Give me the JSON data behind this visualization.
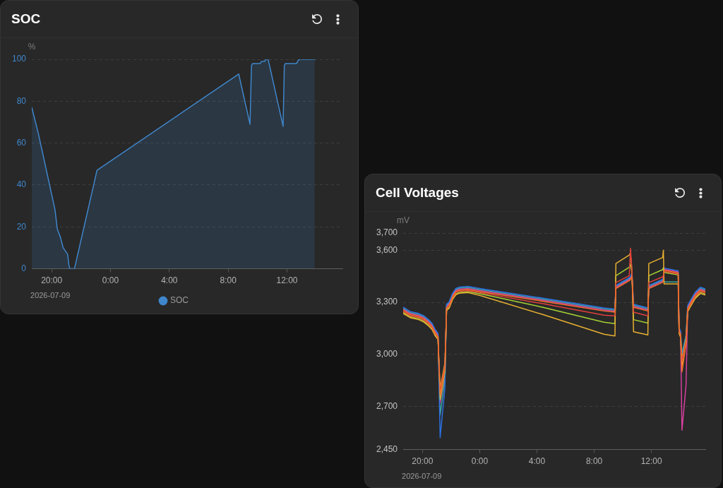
{
  "chart_data": [
    {
      "type": "area",
      "title": "SOC",
      "ylabel": "%",
      "x": [
        "2026-07-09T18:39",
        "2026-07-09T19:05",
        "2026-07-09T20:14",
        "2026-07-09T20:23",
        "2026-07-09T20:36",
        "2026-07-09T20:47",
        "2026-07-09T20:59",
        "2026-07-09T21:05",
        "2026-07-09T21:10",
        "2026-07-09T21:14",
        "2026-07-09T21:33",
        "2026-07-09T23:05",
        "2026-07-10T08:43",
        "2026-07-10T09:29",
        "2026-07-10T09:35",
        "2026-07-10T09:40",
        "2026-07-10T10:11",
        "2026-07-10T10:16",
        "2026-07-10T10:29",
        "2026-07-10T10:34",
        "2026-07-10T10:43",
        "2026-07-10T11:44",
        "2026-07-10T11:49",
        "2026-07-10T11:53",
        "2026-07-10T12:39",
        "2026-07-10T12:43",
        "2026-07-10T12:50",
        "2026-07-10T13:53"
      ],
      "series": [
        {
          "name": "SOC",
          "color": "#3f86cc",
          "values": [
            77,
            65,
            28,
            19,
            15,
            10,
            8,
            7,
            2,
            0,
            0,
            47,
            93,
            69,
            97,
            98,
            98,
            99,
            99,
            100,
            100,
            68,
            97,
            98,
            98,
            99,
            100,
            100
          ]
        }
      ],
      "xlim": [
        "2026-07-09T18:39",
        "2026-07-10T15:46"
      ],
      "xticks": [
        {
          "value": "2026-07-09T20:00",
          "label": "20:00"
        },
        {
          "value": "2026-07-10T00:00",
          "label": "0:00"
        },
        {
          "value": "2026-07-10T04:00",
          "label": "4:00"
        },
        {
          "value": "2026-07-10T08:00",
          "label": "8:00"
        },
        {
          "value": "2026-07-10T12:00",
          "label": "12:00"
        }
      ],
      "ylim": [
        0,
        100
      ],
      "yticks": [
        0,
        20,
        40,
        60,
        80,
        100
      ],
      "grid": "y",
      "legend": "bottom",
      "annotations": [
        "2026-07-09"
      ]
    },
    {
      "type": "line",
      "title": "Cell Voltages",
      "ylabel": "mV",
      "x": [
        "2026-07-09T18:39",
        "2026-07-09T19:09",
        "2026-07-09T19:44",
        "2026-07-09T20:06",
        "2026-07-09T20:27",
        "2026-07-09T20:41",
        "2026-07-09T20:52",
        "2026-07-09T21:05",
        "2026-07-09T21:14",
        "2026-07-09T21:34",
        "2026-07-09T21:41",
        "2026-07-09T21:52",
        "2026-07-09T22:06",
        "2026-07-09T22:20",
        "2026-07-09T22:35",
        "2026-07-09T23:10",
        "2026-07-10T00:00",
        "2026-07-10T04:26",
        "2026-07-10T08:41",
        "2026-07-10T09:27",
        "2026-07-10T09:31",
        "2026-07-10T10:27",
        "2026-07-10T10:32",
        "2026-07-10T10:38",
        "2026-07-10T10:45",
        "2026-07-10T11:45",
        "2026-07-10T11:49",
        "2026-07-10T12:47",
        "2026-07-10T12:50",
        "2026-07-10T12:53",
        "2026-07-10T13:49",
        "2026-07-10T13:52",
        "2026-07-10T13:56",
        "2026-07-10T14:02",
        "2026-07-10T14:08",
        "2026-07-10T14:25",
        "2026-07-10T14:32",
        "2026-07-10T14:43",
        "2026-07-10T15:04",
        "2026-07-10T15:25",
        "2026-07-10T15:46"
      ],
      "series": [
        {
          "color": "#f0702a",
          "values": [
            3254,
            3229,
            3218,
            3204,
            3180,
            3159,
            3128,
            3103,
            2760,
            2915,
            3271,
            3285,
            3334,
            3362,
            3370,
            3374,
            3362,
            3306,
            3250,
            3243,
            3380,
            3425,
            3432,
            3450,
            3271,
            3250,
            3380,
            3415,
            3425,
            3485,
            3471,
            3471,
            3137,
            3116,
            2899,
            3060,
            3264,
            3292,
            3341,
            3369,
            3360
          ]
        },
        {
          "color": "#e0403c",
          "values": [
            3248,
            3223,
            3212,
            3198,
            3174,
            3153,
            3122,
            3097,
            2780,
            2935,
            3265,
            3279,
            3328,
            3356,
            3364,
            3368,
            3356,
            3292,
            3226,
            3222,
            3414,
            3454,
            3612,
            3494,
            3243,
            3222,
            3414,
            3447,
            3455,
            3479,
            3465,
            3465,
            3131,
            3110,
            2960,
            3080,
            3258,
            3286,
            3335,
            3363,
            3354
          ]
        },
        {
          "color": "#e8b030",
          "values": [
            3236,
            3211,
            3200,
            3186,
            3162,
            3141,
            3110,
            3085,
            2800,
            2950,
            3253,
            3267,
            3316,
            3344,
            3352,
            3356,
            3340,
            3229,
            3116,
            3106,
            3524,
            3573,
            3585,
            3484,
            3130,
            3112,
            3524,
            3559,
            3601,
            3406,
            3406,
            3406,
            3119,
            3098,
            2930,
            3070,
            3246,
            3274,
            3323,
            3351,
            3342
          ]
        },
        {
          "color": "#a6d234",
          "values": [
            3242,
            3217,
            3206,
            3192,
            3168,
            3147,
            3116,
            3091,
            2740,
            2900,
            3259,
            3273,
            3322,
            3350,
            3358,
            3362,
            3350,
            3271,
            3185,
            3177,
            3454,
            3503,
            3520,
            3474,
            3200,
            3180,
            3454,
            3489,
            3500,
            3473,
            3459,
            3459,
            3125,
            3104,
            2975,
            3090,
            3252,
            3280,
            3329,
            3357,
            3348
          ]
        },
        {
          "color": "#2c6fe0",
          "values": [
            3272,
            3247,
            3236,
            3222,
            3198,
            3177,
            3146,
            3121,
            2519,
            2807,
            3289,
            3303,
            3352,
            3380,
            3388,
            3392,
            3380,
            3324,
            3268,
            3261,
            3398,
            3443,
            3450,
            3468,
            3289,
            3268,
            3398,
            3433,
            3443,
            3497,
            3483,
            3483,
            3155,
            3134,
            2990,
            3100,
            3282,
            3310,
            3359,
            3387,
            3378
          ]
        },
        {
          "color": "#d6409f",
          "values": [
            3260,
            3235,
            3224,
            3210,
            3186,
            3165,
            3134,
            3109,
            2720,
            2890,
            3277,
            3291,
            3340,
            3368,
            3376,
            3380,
            3368,
            3312,
            3256,
            3249,
            3386,
            3431,
            3438,
            3456,
            3277,
            3256,
            3386,
            3421,
            3431,
            3491,
            3477,
            3477,
            3143,
            3122,
            2562,
            2821,
            3270,
            3298,
            3347,
            3375,
            3366
          ]
        },
        {
          "color": "#3aa8a0",
          "values": [
            3266,
            3241,
            3230,
            3216,
            3192,
            3171,
            3140,
            3115,
            2650,
            2860,
            3283,
            3297,
            3346,
            3374,
            3382,
            3386,
            3374,
            3318,
            3262,
            3255,
            3392,
            3437,
            3444,
            3462,
            3283,
            3262,
            3392,
            3427,
            3437,
            3418,
            3418,
            3418,
            3149,
            3128,
            3005,
            3110,
            3276,
            3304,
            3353,
            3381,
            3372
          ]
        }
      ],
      "xlim": [
        "2026-07-09T18:39",
        "2026-07-10T15:46"
      ],
      "xticks": [
        {
          "value": "2026-07-09T20:00",
          "label": "20:00"
        },
        {
          "value": "2026-07-10T00:00",
          "label": "0:00"
        },
        {
          "value": "2026-07-10T04:00",
          "label": "4:00"
        },
        {
          "value": "2026-07-10T08:00",
          "label": "8:00"
        },
        {
          "value": "2026-07-10T12:00",
          "label": "12:00"
        }
      ],
      "ylim": [
        2450,
        3700
      ],
      "yticks": [
        {
          "value": 2450,
          "label": "2,450"
        },
        {
          "value": 2700,
          "label": "2,700"
        },
        {
          "value": 3000,
          "label": "3,000"
        },
        {
          "value": 3300,
          "label": "3,300"
        },
        {
          "value": 3600,
          "label": "3,600"
        },
        {
          "value": 3700,
          "label": "3,700"
        }
      ],
      "grid": "y",
      "annotations": [
        "2026-07-09"
      ]
    }
  ]
}
